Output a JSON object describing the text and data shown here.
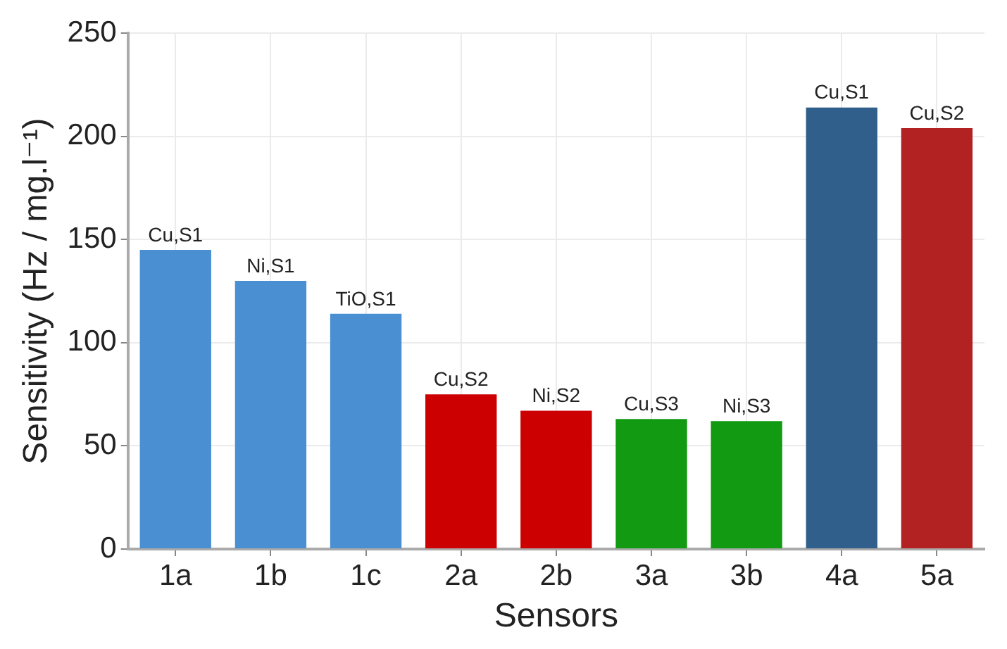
{
  "chart_data": {
    "type": "bar",
    "xlabel": "Sensors",
    "ylabel": "Sensitivity (Hz / mg.l⁻¹)",
    "categories": [
      "1a",
      "1b",
      "1c",
      "2a",
      "2b",
      "3a",
      "3b",
      "4a",
      "5a"
    ],
    "values": [
      145,
      130,
      114,
      75,
      67,
      63,
      62,
      214,
      204
    ],
    "colors": [
      "#4a8fd1",
      "#4a8fd1",
      "#4a8fd1",
      "#cc0000",
      "#cc0000",
      "#129a12",
      "#129a12",
      "#2f5f8a",
      "#b22222"
    ],
    "ylim": [
      0,
      250
    ],
    "yticks": [
      0,
      50,
      100,
      150,
      200,
      250
    ],
    "grid": true,
    "legend": false,
    "annotations": [
      {
        "text": "Cu,S1",
        "x": "1a",
        "y": 145
      },
      {
        "text": "Ni,S1",
        "x": "1b",
        "y": 130
      },
      {
        "text": "TiO,S1",
        "x": "1c",
        "y": 114
      },
      {
        "text": "Cu,S2",
        "x": "2a",
        "y": 75
      },
      {
        "text": "Ni,S2",
        "x": "2b",
        "y": 67
      },
      {
        "text": "Cu,S3",
        "x": "3a",
        "y": 63
      },
      {
        "text": "Ni,S3",
        "x": "3b",
        "y": 62
      },
      {
        "text": "Cu,S1",
        "x": "4a",
        "y": 214
      },
      {
        "text": "Cu,S2",
        "x": "5a",
        "y": 204
      }
    ]
  }
}
